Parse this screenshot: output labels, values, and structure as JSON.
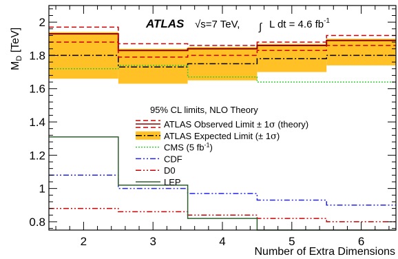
{
  "chart_data": {
    "type": "line",
    "plot_style": "step",
    "experiment": "ATLAS",
    "energy_label": "√s=7 TeV,",
    "lumi_label": "L dt = 4.6 fb",
    "lumi_exponent": "-1",
    "xlabel": "Number of Extra Dimensions",
    "ylabel": "M",
    "ylabel_subscript": "D",
    "ylabel_unit": "[TeV]",
    "xlim": [
      1.5,
      6.5
    ],
    "ylim": [
      0.75,
      2.1
    ],
    "x_ticks": [
      2,
      3,
      4,
      5,
      6
    ],
    "y_ticks": [
      0.8,
      1.0,
      1.2,
      1.4,
      1.6,
      1.8,
      2.0
    ],
    "y_tick_labels": [
      "0.8",
      "1",
      "1.2",
      "1.4",
      "1.6",
      "1.8",
      "2"
    ],
    "x_tick_labels": [
      "2",
      "3",
      "4",
      "5",
      "6"
    ],
    "x_bins": [
      2,
      3,
      4,
      5,
      6
    ],
    "legend_header": "95% CL limits, NLO Theory",
    "legend_placement": "center-left",
    "series": [
      {
        "name": "ATLAS Observed Limit ± 1σ (theory)",
        "legend_main": "ATLAS Observed Limit ± 1",
        "legend_symbol": "σ",
        "legend_suffix": " (theory)",
        "values": [
          1.93,
          1.83,
          1.84,
          1.86,
          1.89
        ],
        "upper": [
          1.97,
          1.87,
          1.86,
          1.88,
          1.92
        ],
        "lower": [
          1.88,
          1.79,
          1.8,
          1.83,
          1.86
        ],
        "color": "#8b0000",
        "style": "solid-with-dashed-band"
      },
      {
        "name": "ATLAS Expected Limit (± 1σ)",
        "legend_main": "ATLAS Expected Limit (± 1",
        "legend_symbol": "σ",
        "legend_suffix": ")",
        "values": [
          1.8,
          1.73,
          1.75,
          1.78,
          1.8
        ],
        "upper": [
          1.94,
          1.84,
          1.85,
          1.87,
          1.9
        ],
        "lower": [
          1.66,
          1.63,
          1.65,
          1.7,
          1.74
        ],
        "color": "#000000",
        "band_color": "#ffc125",
        "style": "dash-dot"
      },
      {
        "name": "CMS (5 fb⁻¹)",
        "legend_main": "CMS (5 fb",
        "legend_sup": "-1",
        "legend_suffix": ")",
        "values": [
          1.72,
          1.74,
          1.67,
          1.64,
          1.64
        ],
        "color": "#33cc33",
        "style": "dotted"
      },
      {
        "name": "CDF",
        "legend_main": "CDF",
        "values": [
          1.08,
          1.0,
          0.97,
          0.93,
          0.9
        ],
        "color": "#2222ee",
        "style": "dash-dot-dot"
      },
      {
        "name": "D0",
        "legend_main": "D0",
        "values": [
          0.88,
          0.86,
          0.84,
          0.82,
          0.8
        ],
        "color": "#cc0000",
        "style": "dash-dot-dot"
      },
      {
        "name": "LEP",
        "legend_main": "LEP",
        "values": [
          1.31,
          1.02,
          0.82,
          0.75,
          0.75
        ],
        "color": "#2e5e2e",
        "style": "solid"
      }
    ]
  }
}
